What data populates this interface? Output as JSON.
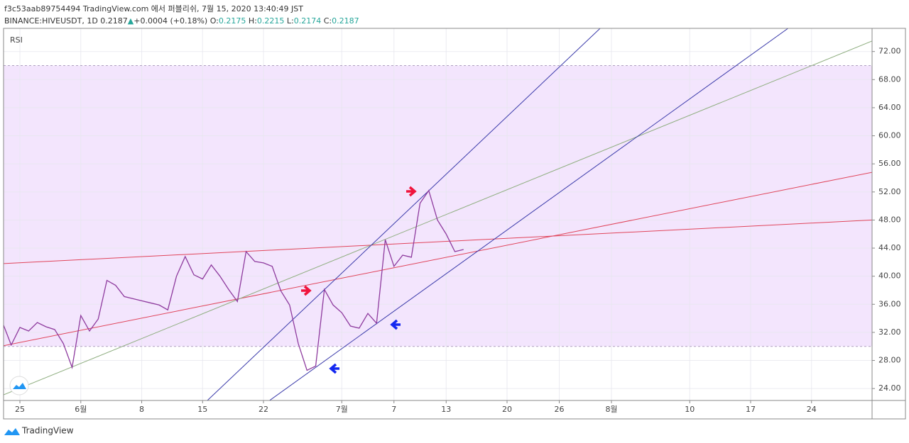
{
  "header": {
    "title": "f3c53aab89754494 TradingView.com 에서 퍼블리쉬, 7월 15, 2020 13:40:49 JST",
    "symbol": "BINANCE:HIVEUSDT, 1D",
    "price": "0.2187",
    "change": "+0.0004 (+0.18%)",
    "ohlc": [
      {
        "label": "O:",
        "value": "0.2175"
      },
      {
        "label": "H:",
        "value": "0.2215"
      },
      {
        "label": "L:",
        "value": "0.2174"
      },
      {
        "label": "C:",
        "value": "0.2187"
      }
    ]
  },
  "footer": {
    "brand": "TradingView"
  },
  "chart_data": {
    "type": "line",
    "x": [
      -2,
      -1,
      0,
      1,
      2,
      3,
      4,
      5,
      6,
      7,
      8,
      9,
      10,
      11,
      12,
      13,
      14,
      15,
      16,
      17,
      18,
      19,
      20,
      21,
      22,
      23,
      24,
      25,
      26,
      27,
      28,
      29,
      30,
      31,
      32,
      33,
      34,
      35,
      36,
      37,
      38,
      39,
      40,
      41,
      42,
      43,
      44,
      45,
      46,
      47,
      48,
      49,
      50,
      51
    ],
    "series": [
      {
        "name": "RSI",
        "color": "#8e3b9e",
        "values": [
          33.4,
          30.2,
          32.7,
          32.2,
          33.4,
          32.8,
          32.4,
          30.4,
          27.0,
          34.4,
          32.2,
          33.9,
          39.4,
          38.7,
          37.1,
          36.8,
          36.5,
          36.2,
          35.9,
          35.2,
          40.0,
          42.8,
          40.2,
          39.6,
          41.6,
          40.0,
          38.1,
          36.4,
          43.5,
          42.1,
          41.9,
          41.4,
          37.9,
          35.9,
          30.4,
          26.6,
          27.2,
          38.1,
          35.9,
          34.8,
          32.9,
          32.6,
          34.7,
          33.3,
          45.2,
          41.4,
          43.0,
          42.7,
          50.4,
          52.2,
          48.0,
          46.0,
          43.5,
          43.8
        ]
      }
    ],
    "band": {
      "range": [
        30,
        70
      ],
      "color": "#f3e5fd",
      "line_color": "#b0a0c0"
    },
    "trend_lines": [
      {
        "color": "#e0445a",
        "x": [
          -1.88,
          97.96
        ],
        "y": [
          41.8,
          48.0
        ]
      },
      {
        "color": "#e0445a",
        "x": [
          -1.88,
          97.96
        ],
        "y": [
          30.1,
          54.8
        ]
      },
      {
        "color": "#8fae80",
        "x": [
          -1.88,
          97.96
        ],
        "y": [
          23.1,
          73.5
        ]
      },
      {
        "color": "#3a3aaa",
        "x": [
          21.55,
          66.7
        ],
        "y": [
          22.3,
          75.3
        ]
      },
      {
        "color": "#3a3aaa",
        "x": [
          28.7,
          88.3
        ],
        "y": [
          22.3,
          75.3
        ]
      }
    ],
    "xlim": [
      -1.88,
      97.96
    ],
    "ylim": [
      22.3,
      75.3
    ],
    "xticks": [
      {
        "value": 0,
        "label": "25"
      },
      {
        "value": 7,
        "label": "6월"
      },
      {
        "value": 14,
        "label": "8"
      },
      {
        "value": 21,
        "label": "15"
      },
      {
        "value": 28,
        "label": "22"
      },
      {
        "value": 37,
        "label": "7월"
      },
      {
        "value": 43,
        "label": "7"
      },
      {
        "value": 49,
        "label": "13"
      },
      {
        "value": 56,
        "label": "20"
      },
      {
        "value": 62,
        "label": "26"
      },
      {
        "value": 68,
        "label": "8월"
      },
      {
        "value": 77,
        "label": "10"
      },
      {
        "value": 84,
        "label": "17"
      },
      {
        "value": 91,
        "label": "24"
      }
    ],
    "yticks": [
      {
        "value": 24,
        "label": "24.00"
      },
      {
        "value": 28,
        "label": "28.00"
      },
      {
        "value": 32,
        "label": "32.00"
      },
      {
        "value": 36,
        "label": "36.00"
      },
      {
        "value": 40,
        "label": "40.00"
      },
      {
        "value": 44,
        "label": "44.00"
      },
      {
        "value": 48,
        "label": "48.00"
      },
      {
        "value": 52,
        "label": "52.00"
      },
      {
        "value": 56,
        "label": "56.00"
      },
      {
        "value": 60,
        "label": "60.00"
      },
      {
        "value": 64,
        "label": "64.00"
      },
      {
        "value": 68,
        "label": "68.00"
      },
      {
        "value": 72,
        "label": "72.00"
      }
    ],
    "grid": true
  }
}
